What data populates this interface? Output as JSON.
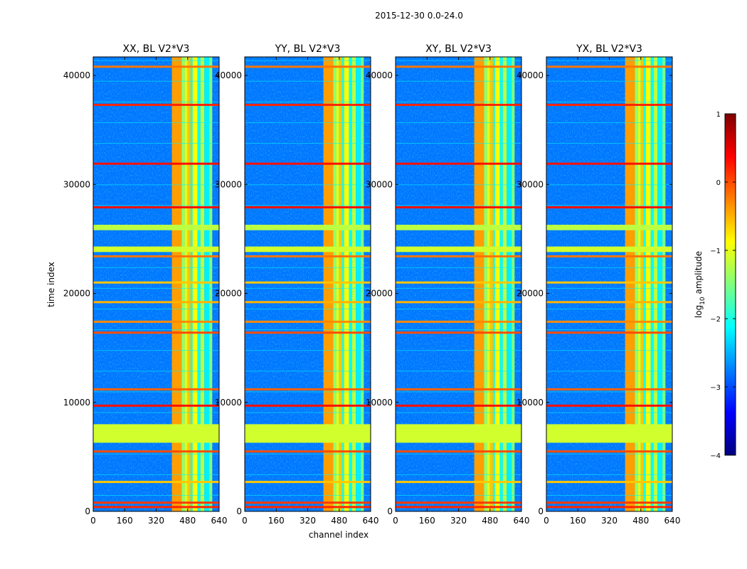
{
  "figure_title": "2015-12-30 0.0-24.0",
  "chart_data": {
    "type": "heatmap",
    "title": "2015-12-30 0.0-24.0",
    "xlabel": "channel index",
    "ylabel": "time index",
    "xlim": [
      0,
      640
    ],
    "ylim": [
      0,
      41700
    ],
    "x_ticks": [
      0,
      160,
      320,
      480,
      640
    ],
    "y_ticks": [
      0,
      10000,
      20000,
      30000,
      40000
    ],
    "panels": [
      {
        "title": "XX, BL V2*V3",
        "polarization": "XX"
      },
      {
        "title": "YY, BL V2*V3",
        "polarization": "YY"
      },
      {
        "title": "XY, BL V2*V3",
        "polarization": "XY"
      },
      {
        "title": "YX, BL V2*V3",
        "polarization": "YX"
      }
    ],
    "colorbar": {
      "label": "log10 amplitude",
      "label_main": "log",
      "label_sub": "10",
      "label_rest": " amplitude",
      "range": [
        -4,
        1
      ],
      "ticks": [
        1,
        0,
        -1,
        -2,
        -3,
        -4
      ],
      "tick_labels": [
        "1",
        "0",
        "−1",
        "−2",
        "−3",
        "−4"
      ]
    },
    "colormap": [
      "#00007f",
      "#0000ff",
      "#007fff",
      "#00ffff",
      "#7fff7f",
      "#ffff00",
      "#ff7f00",
      "#ff0000",
      "#7f0000"
    ],
    "features": {
      "background_level": -2.8,
      "bright_channel_bands": [
        {
          "from": 400,
          "to": 450,
          "level": -0.4
        },
        {
          "from": 450,
          "to": 465,
          "level": -1.4
        },
        {
          "from": 465,
          "to": 480,
          "level": -1.0
        },
        {
          "from": 480,
          "to": 495,
          "level": -0.6
        },
        {
          "from": 495,
          "to": 505,
          "level": -2.0
        },
        {
          "from": 505,
          "to": 530,
          "level": -0.9
        },
        {
          "from": 530,
          "to": 545,
          "level": -2.1
        },
        {
          "from": 545,
          "to": 565,
          "level": -1.2
        },
        {
          "from": 565,
          "to": 590,
          "level": -2.2
        },
        {
          "from": 590,
          "to": 605,
          "level": -1.5
        }
      ],
      "flagged_time_blocks": [
        {
          "from": 6300,
          "to": 8000,
          "level": -1.1
        },
        {
          "from": 23800,
          "to": 24300,
          "level": -1.1
        },
        {
          "from": 25800,
          "to": 26300,
          "level": -1.2
        }
      ],
      "rfi_time_lines": [
        {
          "t": 400,
          "level": 0.2
        },
        {
          "t": 800,
          "level": 0.1
        },
        {
          "t": 2700,
          "level": -0.6
        },
        {
          "t": 5500,
          "level": 0.0
        },
        {
          "t": 9700,
          "level": 0.3
        },
        {
          "t": 11200,
          "level": -0.1
        },
        {
          "t": 16400,
          "level": 0.0
        },
        {
          "t": 17400,
          "level": -0.3
        },
        {
          "t": 19200,
          "level": -0.5
        },
        {
          "t": 21000,
          "level": -0.6
        },
        {
          "t": 23400,
          "level": -0.2
        },
        {
          "t": 27900,
          "level": 0.3
        },
        {
          "t": 31900,
          "level": 0.3
        },
        {
          "t": 37300,
          "level": 0.2
        },
        {
          "t": 40800,
          "level": -0.2
        }
      ]
    }
  }
}
